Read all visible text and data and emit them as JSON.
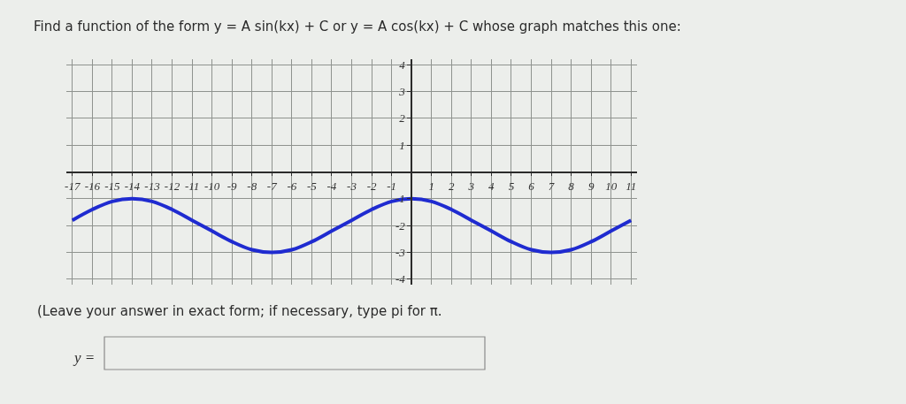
{
  "chart_data": {
    "type": "line",
    "title": "Find a function of the form y = A sin(kx) + C or y = A cos(kx) + C whose graph matches this one:",
    "annotations": [
      "(Leave your answer in exact form; if necessary, type pi for π.",
      "y ="
    ],
    "x": [
      -17,
      -16,
      -15,
      -14,
      -13,
      -12,
      -11,
      -10,
      -9,
      -8,
      -7,
      -6,
      -5,
      -4,
      -3,
      -2,
      -1,
      0,
      1,
      2,
      3,
      4,
      5,
      6,
      7,
      8,
      9,
      10,
      11
    ],
    "series": [
      {
        "color": "#1f2bd0",
        "values": [
          -1.8,
          -1.4,
          -1.1,
          -1,
          -1.1,
          -1.4,
          -1.8,
          -2.2,
          -2.6,
          -2.9,
          -3,
          -2.9,
          -2.6,
          -2.2,
          -1.8,
          -1.4,
          -1.1,
          -1,
          -1.1,
          -1.4,
          -1.8,
          -2.2,
          -2.6,
          -2.9,
          -3,
          -2.9,
          -2.6,
          -2.2,
          -1.8
        ]
      }
    ],
    "xlim": [
      -17.3,
      11.3
    ],
    "ylim": [
      -4.2,
      4.2
    ],
    "xticks": [
      -17,
      -16,
      -15,
      -14,
      -13,
      -12,
      -11,
      -10,
      -9,
      -8,
      -7,
      -6,
      -5,
      -4,
      -3,
      -2,
      -1,
      1,
      2,
      3,
      4,
      5,
      6,
      7,
      8,
      9,
      10,
      11
    ],
    "yticks": [
      -4,
      -3,
      -2,
      -1,
      1,
      2,
      3,
      4
    ],
    "grid": true,
    "marker": "none",
    "line_style": "solid"
  }
}
